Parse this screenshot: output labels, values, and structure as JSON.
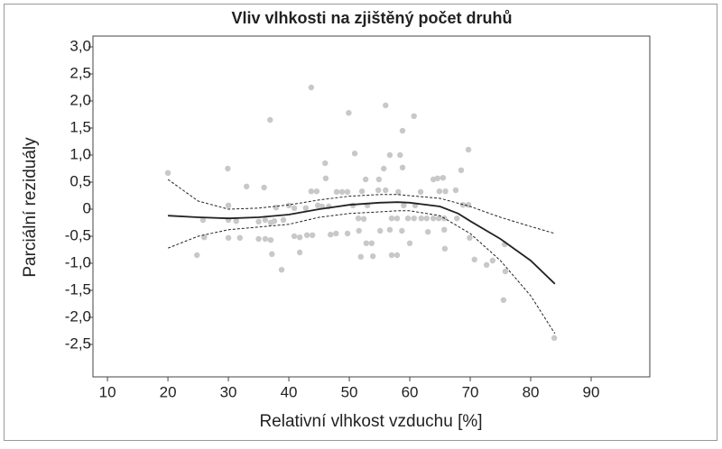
{
  "chart_data": {
    "type": "scatter",
    "title": "Vliv vlhkosti na zjištěný počet druhů",
    "x_label": "Relativní vlhkost vzduchu [%]",
    "y_label": "Parciální reziduály",
    "xlim": [
      7.6,
      99.7
    ],
    "ylim": [
      -3.1,
      3.2
    ],
    "xticks": [
      10,
      20,
      30,
      40,
      50,
      60,
      70,
      80,
      90
    ],
    "yticks": [
      {
        "value": 3,
        "label": "3,0"
      },
      {
        "value": 2.5,
        "label": "2,5"
      },
      {
        "value": 2,
        "label": "2,0"
      },
      {
        "value": 1.5,
        "label": "1,5"
      },
      {
        "value": 1,
        "label": "1,0"
      },
      {
        "value": 0.5,
        "label": "0,5"
      },
      0,
      {
        "value": -0.5,
        "label": "-0,5"
      },
      {
        "value": -1,
        "label": "-1,0"
      },
      {
        "value": -1.5,
        "label": "-1,5"
      },
      {
        "value": -2,
        "label": "-2,0"
      },
      {
        "value": -2.5,
        "label": "-2,5"
      }
    ],
    "series": [
      {
        "type": "scatter",
        "color": "#c8c8c8",
        "x": [
          20,
          24.8,
          25.8,
          26,
          29.9,
          30,
          30,
          30,
          31.3,
          31.9,
          33,
          35,
          35,
          35.9,
          36.1,
          36.1,
          36.9,
          37,
          37,
          37.2,
          37.6,
          37.9,
          38.8,
          39.1,
          40,
          40.9,
          40.9,
          41.8,
          41.8,
          42.8,
          43,
          43.7,
          43.7,
          43.9,
          44.6,
          44.8,
          45.5,
          46,
          46.1,
          46.6,
          46.9,
          47.8,
          47.9,
          48.8,
          49.7,
          49.7,
          49.9,
          50.6,
          50.9,
          51.5,
          51.6,
          51.9,
          52.1,
          52.4,
          52.7,
          52.8,
          53,
          53.7,
          53.9,
          54.8,
          54.9,
          55.1,
          55.7,
          56,
          56,
          56.7,
          56.7,
          57,
          57,
          57.9,
          57.9,
          58.1,
          58.4,
          58.7,
          58.8,
          58.8,
          59,
          59.7,
          60,
          60.7,
          60.7,
          60.9,
          61.8,
          61.9,
          62.8,
          63,
          63.9,
          63.9,
          64.6,
          64.8,
          64.9,
          65.5,
          65.7,
          65.7,
          65.8,
          65.9,
          67.6,
          67.8,
          68.5,
          68.8,
          69.7,
          69.7,
          69.9,
          70.7,
          72.7,
          73.7,
          75.5,
          75.7,
          75.8,
          83.9
        ],
        "values": [
          0.67,
          -0.85,
          -0.2,
          -0.52,
          0.75,
          0.07,
          -0.2,
          -0.53,
          -0.22,
          -0.53,
          0.42,
          -0.23,
          -0.55,
          0.4,
          -0.2,
          -0.55,
          1.65,
          -0.25,
          -0.57,
          -0.83,
          -0.22,
          0.03,
          -1.12,
          -0.2,
          0.07,
          -0.5,
          0.02,
          -0.8,
          -0.52,
          0.02,
          -0.48,
          2.25,
          0.33,
          -0.48,
          0.33,
          0.07,
          0.05,
          0.85,
          0.57,
          0.05,
          -0.47,
          -0.45,
          0.32,
          0.32,
          0.32,
          -0.45,
          1.78,
          0.07,
          1.03,
          -0.17,
          -0.4,
          -0.88,
          0.33,
          -0.18,
          0.55,
          -0.63,
          0.07,
          -0.63,
          -0.87,
          0.35,
          0.55,
          -0.4,
          0.75,
          1.92,
          0.35,
          -0.38,
          1,
          -0.17,
          -0.85,
          -0.85,
          -0.17,
          0.32,
          1,
          -0.4,
          1.45,
          0.77,
          0.07,
          -0.17,
          -0.63,
          1.72,
          -0.17,
          0.07,
          0.32,
          -0.17,
          -0.17,
          -0.42,
          0.55,
          -0.17,
          0.57,
          -0.17,
          0.33,
          0.58,
          -0.38,
          -0.17,
          -0.73,
          0.33,
          0.35,
          -0.17,
          0.72,
          0.08,
          1.1,
          0.08,
          -0.53,
          -0.93,
          -1.03,
          -0.95,
          -1.68,
          -0.65,
          -1.15,
          -2.38
        ]
      },
      {
        "type": "line",
        "color": "#222222",
        "dashed": false,
        "x": [
          20,
          25,
          30,
          35,
          40,
          45,
          50,
          55,
          58,
          60,
          65,
          68,
          70,
          75,
          80,
          84
        ],
        "values": [
          -0.12,
          -0.15,
          -0.17,
          -0.15,
          -0.1,
          0,
          0.08,
          0.12,
          0.13,
          0.12,
          0.05,
          -0.08,
          -0.22,
          -0.55,
          -0.95,
          -1.38
        ]
      },
      {
        "type": "line",
        "color": "#222222",
        "dashed": true,
        "x": [
          20,
          25,
          30,
          35,
          40,
          45,
          50,
          55,
          58,
          60,
          65,
          70,
          75,
          80,
          84
        ],
        "values": [
          0.55,
          0.15,
          0,
          0.02,
          0.08,
          0.17,
          0.24,
          0.27,
          0.27,
          0.25,
          0.2,
          0.05,
          -0.15,
          -0.32,
          -0.45
        ]
      },
      {
        "type": "line",
        "color": "#222222",
        "dashed": true,
        "x": [
          20,
          25,
          30,
          35,
          40,
          45,
          50,
          55,
          58,
          60,
          65,
          70,
          75,
          80,
          84
        ],
        "values": [
          -0.72,
          -0.5,
          -0.38,
          -0.33,
          -0.28,
          -0.15,
          -0.08,
          -0.05,
          -0.03,
          -0.03,
          -0.12,
          -0.45,
          -0.95,
          -1.6,
          -2.3
        ]
      }
    ]
  }
}
